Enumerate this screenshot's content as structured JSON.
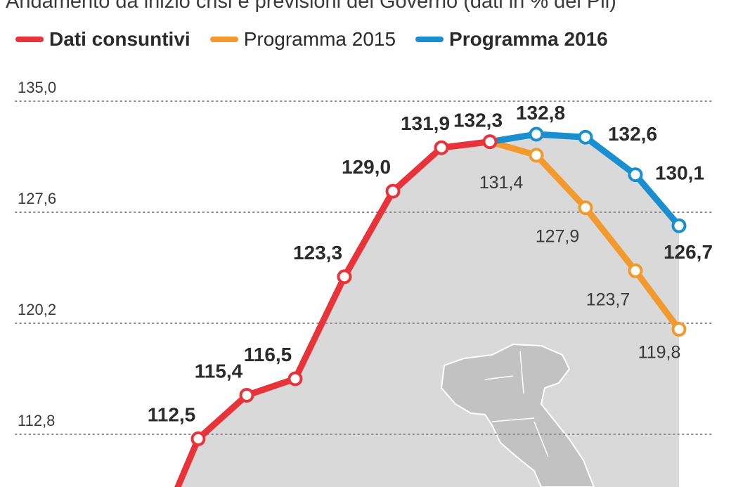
{
  "subtitle": "Andamento da inizio crisi e previsioni del Governo (dati in % del Pil)",
  "legend": {
    "items": [
      {
        "label": "Dati consuntivi",
        "color": "#e8333a",
        "bold": true
      },
      {
        "label": "Programma 2015",
        "color": "#f39a2e",
        "bold": false
      },
      {
        "label": "Programma 2016",
        "color": "#1a8fd0",
        "bold": true
      }
    ]
  },
  "chart_data": {
    "type": "line",
    "y_ticks": [
      "135,0",
      "127,6",
      "120,2",
      "112,8"
    ],
    "series": [
      {
        "name": "Dati consuntivi",
        "color": "#e8333a",
        "points": [
          {
            "y": 112.5,
            "label": "112,5"
          },
          {
            "y": 115.4,
            "label": "115,4"
          },
          {
            "y": 116.5,
            "label": "116,5"
          },
          {
            "y": 123.3,
            "label": "123,3"
          },
          {
            "y": 129.0,
            "label": "129,0"
          },
          {
            "y": 131.9,
            "label": "131,9"
          },
          {
            "y": 132.3,
            "label": "132,3"
          }
        ]
      },
      {
        "name": "Programma 2015",
        "color": "#f39a2e",
        "points": [
          {
            "y": 131.4,
            "label": "131,4"
          },
          {
            "y": 127.9,
            "label": "127,9"
          },
          {
            "y": 123.7,
            "label": "123,7"
          },
          {
            "y": 119.8,
            "label": "119,8"
          }
        ]
      },
      {
        "name": "Programma 2016",
        "color": "#1a8fd0",
        "points": [
          {
            "y": 132.8,
            "label": "132,8"
          },
          {
            "y": 132.6,
            "label": "132,6"
          },
          {
            "y": 130.1,
            "label": "130,1"
          },
          {
            "y": 126.7,
            "label": "126,7"
          }
        ]
      }
    ],
    "grid": "dotted",
    "legend_position": "top-left",
    "colors": {
      "area": "#d9d9d9",
      "map": "#c2c2c2"
    }
  }
}
